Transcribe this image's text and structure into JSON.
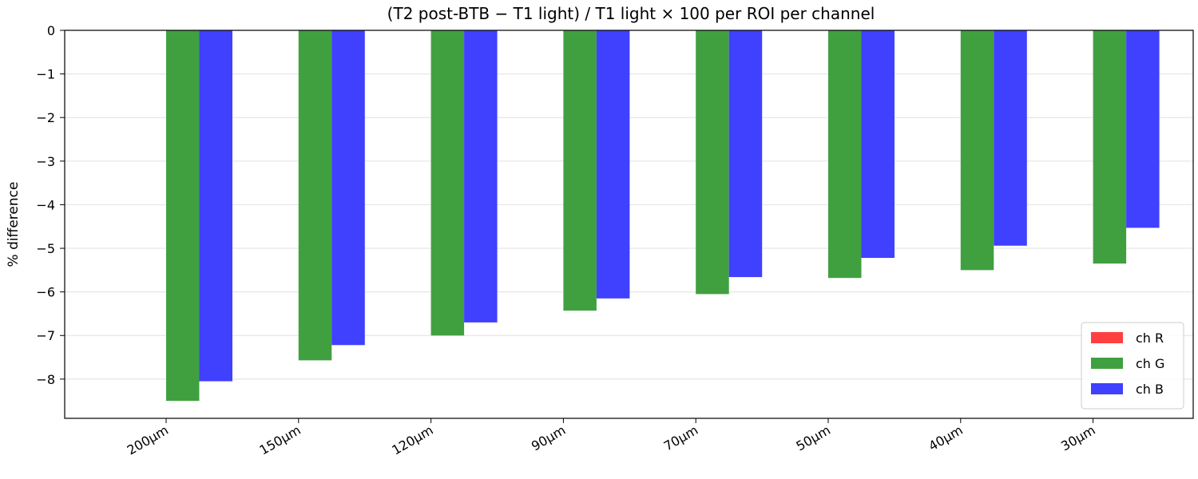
{
  "chart_data": {
    "type": "bar",
    "title": "(T2 post-BTB − T1 light) / T1 light × 100  per ROI per channel",
    "xlabel": "",
    "ylabel": "% difference",
    "categories": [
      "200µm",
      "150µm",
      "120µm",
      "90µm",
      "70µm",
      "50µm",
      "40µm",
      "30µm"
    ],
    "series": [
      {
        "name": "ch R",
        "color": "#ff4040",
        "values": [
          0,
          0,
          0,
          0,
          0,
          0,
          0,
          0
        ]
      },
      {
        "name": "ch G",
        "color": "#40a040",
        "values": [
          -8.5,
          -7.57,
          -7.0,
          -6.43,
          -6.05,
          -5.68,
          -5.5,
          -5.35
        ]
      },
      {
        "name": "ch B",
        "color": "#4040ff",
        "values": [
          -8.05,
          -7.22,
          -6.7,
          -6.15,
          -5.66,
          -5.22,
          -4.94,
          -4.53
        ]
      }
    ],
    "ylim": [
      -8.9,
      0
    ],
    "yticks": [
      0,
      -1,
      -2,
      -3,
      -4,
      -5,
      -6,
      -7,
      -8
    ],
    "ytick_labels": [
      "0",
      "−1",
      "−2",
      "−3",
      "−4",
      "−5",
      "−6",
      "−7",
      "−8"
    ],
    "grid": "horizontal",
    "legend_position": "bottom-right"
  }
}
